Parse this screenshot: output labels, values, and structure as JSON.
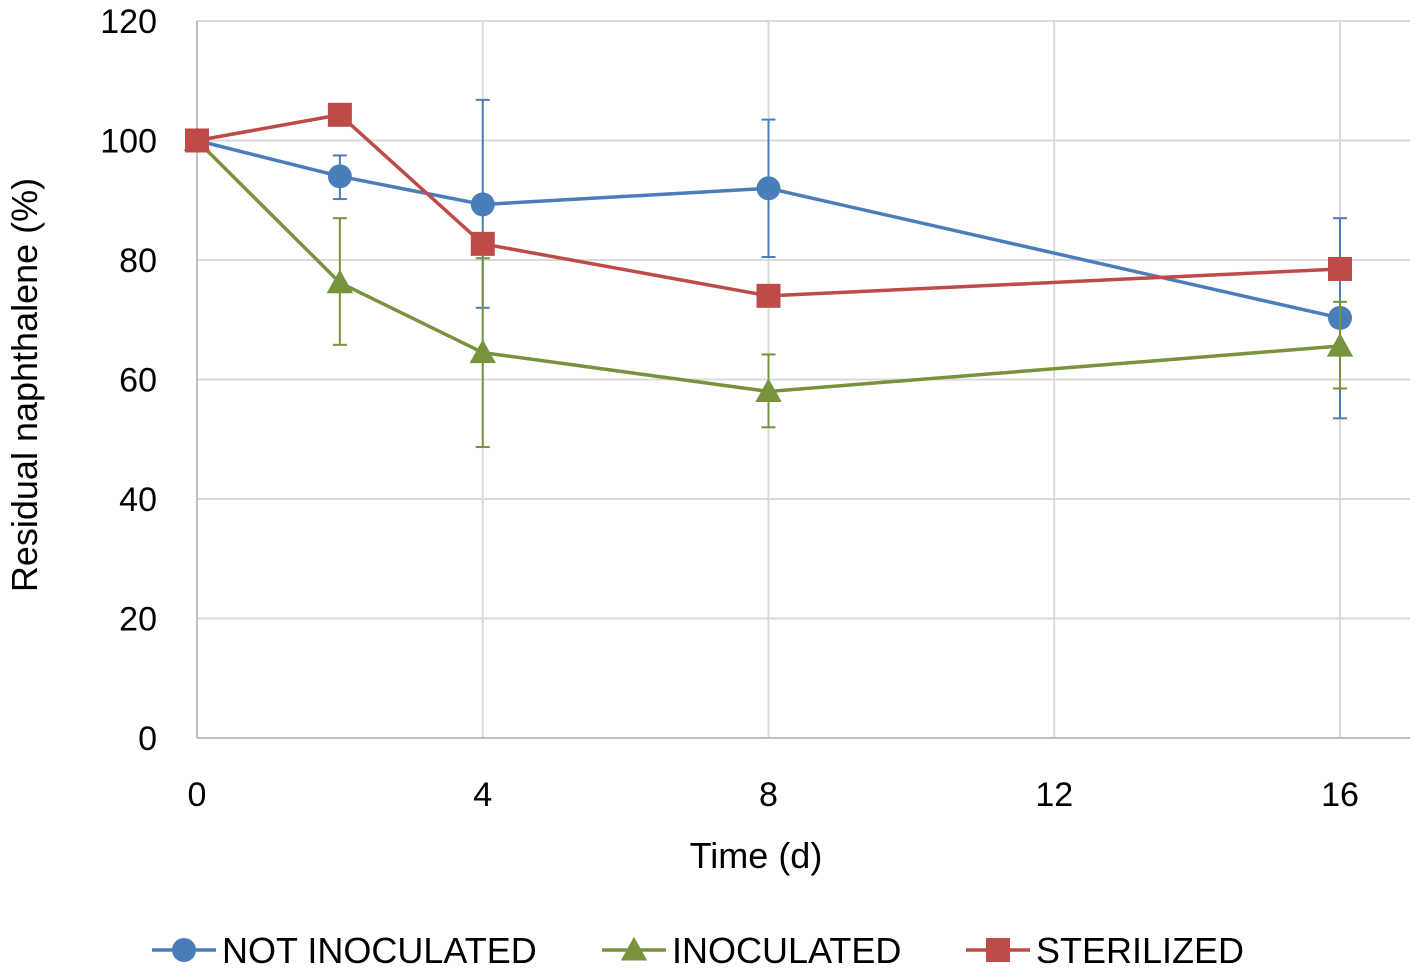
{
  "chart_data": {
    "type": "line",
    "title": "",
    "xlabel": "Time (d)",
    "ylabel": "Residual naphthalene (%)",
    "xlim": [
      0,
      16
    ],
    "ylim": [
      0,
      120
    ],
    "x_ticks": [
      0,
      4,
      8,
      12,
      16
    ],
    "y_ticks": [
      0,
      20,
      40,
      60,
      80,
      100,
      120
    ],
    "grid": true,
    "legend_position": "bottom",
    "series": [
      {
        "name": "NOT INOCULATED",
        "color": "#4a7ebb",
        "marker": "circle",
        "x": [
          0,
          2,
          4,
          8,
          16
        ],
        "y": [
          100,
          94,
          89.3,
          92,
          70.3
        ],
        "err_low": [
          100,
          90.2,
          72,
          80.5,
          53.5
        ],
        "err_high": [
          100,
          97.5,
          106.8,
          103.5,
          87
        ]
      },
      {
        "name": "INOCULATED",
        "color": "#77933c",
        "marker": "triangle",
        "x": [
          0,
          2,
          4,
          8,
          16
        ],
        "y": [
          100,
          76.2,
          64.5,
          58,
          65.6
        ],
        "err_low": [
          100,
          65.8,
          48.7,
          52,
          58.5
        ],
        "err_high": [
          100,
          87,
          80.3,
          64.2,
          73
        ]
      },
      {
        "name": "STERILIZED",
        "color": "#be4b48",
        "marker": "square",
        "x": [
          0,
          2,
          4,
          8,
          16
        ],
        "y": [
          100,
          104.3,
          82.7,
          74,
          78.5
        ],
        "err_low": [
          100,
          104.3,
          82.7,
          74,
          78.5
        ],
        "err_high": [
          100,
          104.3,
          82.7,
          74,
          78.5
        ]
      }
    ]
  }
}
